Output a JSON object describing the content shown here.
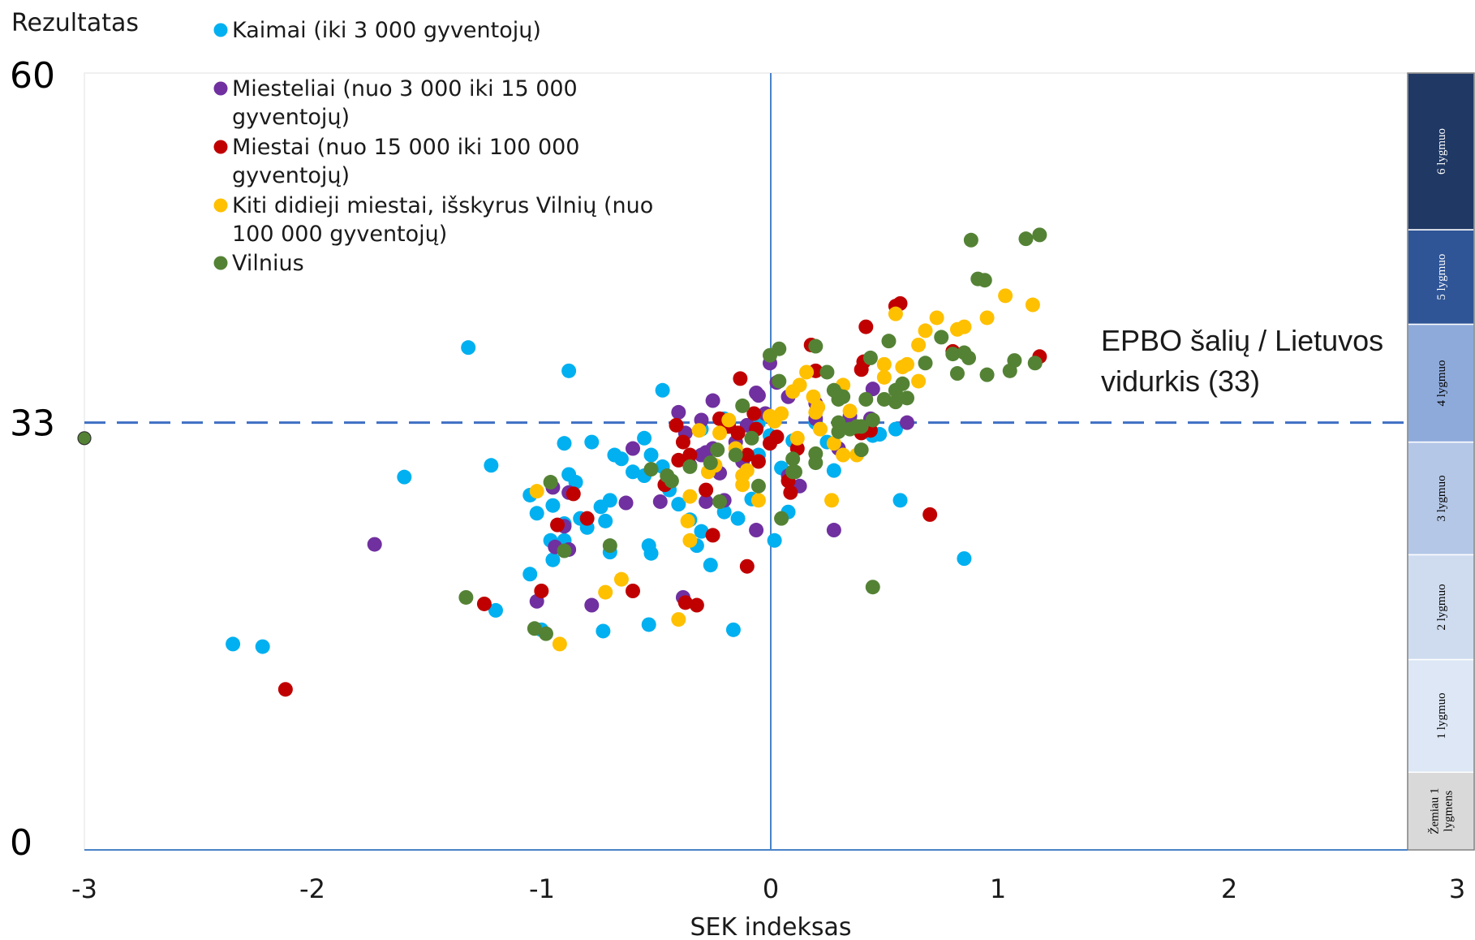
{
  "chart_data": {
    "type": "scatter",
    "ylabel": "Rezultatas",
    "xlabel": "SEK indeksas",
    "xlim": [
      -3,
      3
    ],
    "ylim": [
      0,
      60
    ],
    "xticks": [
      "-3",
      "-2",
      "-1",
      "0",
      "1",
      "2",
      "3"
    ],
    "yticks": [
      "0",
      "33",
      "60"
    ],
    "grid": false,
    "legend_position": "top-left",
    "reference_line": {
      "y": 33,
      "label_lines": [
        "EPBO šalių / Lietuvos",
        "vidurkis (33)"
      ]
    },
    "levels": [
      {
        "label": "Žemiau 1 lygmens",
        "lines": [
          "Žemiau 1",
          "lygmens"
        ],
        "y_from": 0,
        "y_to": 6,
        "color": "#d9d9d9",
        "text_color": "#000000"
      },
      {
        "label": "1 lygmuo",
        "lines": [
          "1 lygmuo"
        ],
        "y_from": 6,
        "y_to": 14.7,
        "color": "#dde7f5",
        "text_color": "#000000"
      },
      {
        "label": "2 lygmuo",
        "lines": [
          "2 lygmuo"
        ],
        "y_from": 14.7,
        "y_to": 22.8,
        "color": "#cfdcf0",
        "text_color": "#000000"
      },
      {
        "label": "3 lygmuo",
        "lines": [
          "3 lygmuo"
        ],
        "y_from": 22.8,
        "y_to": 31.5,
        "color": "#b4c7e7",
        "text_color": "#000000"
      },
      {
        "label": "4 lygmuo",
        "lines": [
          "4 lygmuo"
        ],
        "y_from": 31.5,
        "y_to": 40.6,
        "color": "#8eaadb",
        "text_color": "#000000"
      },
      {
        "label": "5 lygmuo",
        "lines": [
          "5 lygmuo"
        ],
        "y_from": 40.6,
        "y_to": 47.9,
        "color": "#2f5597",
        "text_color": "#ffffff"
      },
      {
        "label": "6 lygmuo",
        "lines": [
          "6 lygmuo"
        ],
        "y_from": 47.9,
        "y_to": 60,
        "color": "#1f3864",
        "text_color": "#ffffff"
      }
    ],
    "series": [
      {
        "name": "Kaimai (iki 3 000 gyventojų)",
        "legend_lines": [
          "Kaimai (iki 3 000 gyventojų)"
        ],
        "color": "#00b0f0",
        "points": [
          [
            -1.32,
            38.8
          ],
          [
            -0.88,
            37.0
          ],
          [
            -0.47,
            35.5
          ],
          [
            -1.6,
            28.8
          ],
          [
            -1.22,
            29.7
          ],
          [
            -0.9,
            31.4
          ],
          [
            -0.78,
            31.5
          ],
          [
            -0.68,
            30.5
          ],
          [
            -0.65,
            30.2
          ],
          [
            -0.85,
            28.4
          ],
          [
            -0.88,
            29.0
          ],
          [
            -1.05,
            27.4
          ],
          [
            -1.02,
            26.0
          ],
          [
            -0.95,
            26.6
          ],
          [
            -0.9,
            25.2
          ],
          [
            -0.96,
            23.9
          ],
          [
            -0.83,
            25.6
          ],
          [
            -0.8,
            24.9
          ],
          [
            -0.72,
            25.4
          ],
          [
            -0.7,
            27.0
          ],
          [
            -0.74,
            26.5
          ],
          [
            -0.6,
            29.2
          ],
          [
            -0.55,
            28.9
          ],
          [
            -0.47,
            29.6
          ],
          [
            -0.55,
            31.8
          ],
          [
            -0.52,
            30.5
          ],
          [
            -0.44,
            27.8
          ],
          [
            -0.4,
            26.7
          ],
          [
            -0.35,
            25.5
          ],
          [
            -0.3,
            24.6
          ],
          [
            -0.2,
            26.1
          ],
          [
            -0.08,
            27.1
          ],
          [
            -0.14,
            25.6
          ],
          [
            0.02,
            23.9
          ],
          [
            0.08,
            26.1
          ],
          [
            0.05,
            29.5
          ],
          [
            -0.05,
            30.5
          ],
          [
            0.1,
            31.6
          ],
          [
            0.25,
            31.5
          ],
          [
            0.28,
            29.3
          ],
          [
            0.45,
            32.0
          ],
          [
            0.55,
            32.5
          ],
          [
            0.48,
            32.1
          ],
          [
            -0.26,
            22.0
          ],
          [
            -1.05,
            21.3
          ],
          [
            -0.95,
            22.4
          ],
          [
            -0.9,
            23.9
          ],
          [
            -0.7,
            23.0
          ],
          [
            -0.53,
            23.5
          ],
          [
            -0.52,
            22.9
          ],
          [
            -0.32,
            23.5
          ],
          [
            -1.0,
            17.0
          ],
          [
            -0.73,
            16.9
          ],
          [
            -0.53,
            17.4
          ],
          [
            -0.16,
            17.0
          ],
          [
            -1.2,
            18.5
          ],
          [
            -0.2,
            33.3
          ],
          [
            -0.3,
            32.5
          ],
          [
            0.0,
            32.0
          ],
          [
            0.2,
            33.0
          ],
          [
            -2.35,
            15.9
          ],
          [
            -2.22,
            15.7
          ],
          [
            0.85,
            22.5
          ],
          [
            0.57,
            27.0
          ],
          [
            -0.05,
            33.0
          ]
        ]
      },
      {
        "name": "Miesteliai (nuo 3 000 iki 15 000 gyventojų)",
        "legend_lines": [
          "Miesteliai (nuo 3 000 iki 15 000",
          "gyventojų)"
        ],
        "color": "#7030a0",
        "points": [
          [
            -1.73,
            23.6
          ],
          [
            -0.95,
            28.0
          ],
          [
            -0.88,
            27.6
          ],
          [
            -0.9,
            25.0
          ],
          [
            -0.94,
            23.4
          ],
          [
            -0.88,
            23.2
          ],
          [
            -0.6,
            31.0
          ],
          [
            -0.63,
            26.8
          ],
          [
            -0.48,
            26.9
          ],
          [
            -0.4,
            33.8
          ],
          [
            -0.3,
            33.2
          ],
          [
            -0.37,
            32.2
          ],
          [
            -0.28,
            30.7
          ],
          [
            -0.35,
            29.7
          ],
          [
            -0.22,
            29.1
          ],
          [
            -0.2,
            27.0
          ],
          [
            -0.28,
            26.9
          ],
          [
            -0.25,
            31.0
          ],
          [
            -0.12,
            30.0
          ],
          [
            -0.1,
            32.8
          ],
          [
            -0.02,
            33.7
          ],
          [
            -0.05,
            35.1
          ],
          [
            0.03,
            36.1
          ],
          [
            -0.25,
            34.7
          ],
          [
            -0.06,
            35.3
          ],
          [
            0.08,
            35.0
          ],
          [
            0.13,
            28.1
          ],
          [
            0.08,
            28.9
          ],
          [
            0.28,
            24.7
          ],
          [
            -0.06,
            24.7
          ],
          [
            0.2,
            33.3
          ],
          [
            0.35,
            33.5
          ],
          [
            0.44,
            33.3
          ],
          [
            0.6,
            33.0
          ],
          [
            0.45,
            35.6
          ],
          [
            0.0,
            37.6
          ],
          [
            -0.38,
            19.5
          ],
          [
            -0.78,
            18.9
          ],
          [
            -1.02,
            19.2
          ],
          [
            -0.3,
            30.5
          ],
          [
            0.3,
            31.0
          ],
          [
            0.2,
            34.5
          ],
          [
            -0.15,
            31.5
          ]
        ]
      },
      {
        "name": "Miestai (nuo 15 000 iki 100 000 gyventojų)",
        "legend_lines": [
          "Miestai (nuo 15 000 iki 100 000",
          "gyventojų)"
        ],
        "color": "#c00000",
        "points": [
          [
            -2.12,
            12.4
          ],
          [
            -1.25,
            19.0
          ],
          [
            -0.86,
            27.5
          ],
          [
            -0.93,
            25.1
          ],
          [
            -0.8,
            25.6
          ],
          [
            -1.0,
            20.0
          ],
          [
            -0.6,
            20.0
          ],
          [
            -0.46,
            28.2
          ],
          [
            -0.41,
            32.8
          ],
          [
            -0.4,
            30.1
          ],
          [
            -0.35,
            30.5
          ],
          [
            -0.28,
            27.8
          ],
          [
            -0.22,
            33.3
          ],
          [
            -0.18,
            32.7
          ],
          [
            -0.14,
            32.2
          ],
          [
            -0.07,
            33.7
          ],
          [
            -0.13,
            36.4
          ],
          [
            -0.06,
            32.5
          ],
          [
            -0.1,
            30.5
          ],
          [
            0.0,
            31.4
          ],
          [
            0.03,
            31.9
          ],
          [
            -0.05,
            30.0
          ],
          [
            0.08,
            28.5
          ],
          [
            0.09,
            27.6
          ],
          [
            0.18,
            39.0
          ],
          [
            0.2,
            37.0
          ],
          [
            0.4,
            37.1
          ],
          [
            0.41,
            37.7
          ],
          [
            0.55,
            42.0
          ],
          [
            0.57,
            42.2
          ],
          [
            0.8,
            38.5
          ],
          [
            0.4,
            32.2
          ],
          [
            0.44,
            32.4
          ],
          [
            0.12,
            31.0
          ],
          [
            0.7,
            25.9
          ],
          [
            1.18,
            38.1
          ],
          [
            -0.32,
            18.9
          ],
          [
            -0.37,
            19.1
          ],
          [
            -0.25,
            24.3
          ],
          [
            -0.1,
            21.9
          ],
          [
            0.42,
            40.4
          ],
          [
            -0.38,
            31.5
          ]
        ]
      },
      {
        "name": "Kiti didieji miestai, išskyrus Vilnių (nuo 100 000 gyventojų)",
        "legend_lines": [
          "Kiti didieji miestai, išskyrus Vilnių (nuo",
          "100 000 gyventojų)"
        ],
        "color": "#ffc000",
        "points": [
          [
            -1.02,
            27.7
          ],
          [
            -0.92,
            15.9
          ],
          [
            -0.72,
            19.9
          ],
          [
            -0.65,
            20.9
          ],
          [
            -0.4,
            17.8
          ],
          [
            -0.35,
            23.9
          ],
          [
            -0.35,
            27.3
          ],
          [
            -0.36,
            25.4
          ],
          [
            -0.31,
            32.4
          ],
          [
            -0.27,
            29.2
          ],
          [
            -0.24,
            29.7
          ],
          [
            -0.22,
            32.2
          ],
          [
            -0.18,
            33.2
          ],
          [
            -0.12,
            28.9
          ],
          [
            -0.1,
            29.3
          ],
          [
            -0.12,
            28.2
          ],
          [
            -0.05,
            27.0
          ],
          [
            0.0,
            33.5
          ],
          [
            0.02,
            33.1
          ],
          [
            0.05,
            33.7
          ],
          [
            0.1,
            35.4
          ],
          [
            0.13,
            35.9
          ],
          [
            0.16,
            36.9
          ],
          [
            0.19,
            35.0
          ],
          [
            0.2,
            33.8
          ],
          [
            0.21,
            34.2
          ],
          [
            0.22,
            32.5
          ],
          [
            0.28,
            31.4
          ],
          [
            0.32,
            30.5
          ],
          [
            0.35,
            33.9
          ],
          [
            0.38,
            30.5
          ],
          [
            0.5,
            36.5
          ],
          [
            0.5,
            37.5
          ],
          [
            0.58,
            37.3
          ],
          [
            0.6,
            37.5
          ],
          [
            0.65,
            36.2
          ],
          [
            0.65,
            39.0
          ],
          [
            0.68,
            40.1
          ],
          [
            0.73,
            41.1
          ],
          [
            0.82,
            40.2
          ],
          [
            0.85,
            40.4
          ],
          [
            0.95,
            41.1
          ],
          [
            1.03,
            42.8
          ],
          [
            1.15,
            42.1
          ],
          [
            0.55,
            41.4
          ],
          [
            0.32,
            35.9
          ],
          [
            0.27,
            27.0
          ],
          [
            0.12,
            31.8
          ],
          [
            -0.15,
            31.0
          ]
        ]
      },
      {
        "name": "Vilnius",
        "legend_lines": [
          "Vilnius"
        ],
        "color": "#548235",
        "points": [
          [
            -3.0,
            31.8
          ],
          [
            -1.33,
            19.5
          ],
          [
            -1.03,
            17.1
          ],
          [
            -0.96,
            28.4
          ],
          [
            -0.9,
            23.1
          ],
          [
            -0.7,
            23.5
          ],
          [
            -0.43,
            28.5
          ],
          [
            -0.45,
            28.9
          ],
          [
            -0.35,
            29.6
          ],
          [
            -0.26,
            29.9
          ],
          [
            -0.23,
            30.9
          ],
          [
            -0.15,
            30.5
          ],
          [
            -0.12,
            34.3
          ],
          [
            -0.08,
            31.8
          ],
          [
            0.0,
            38.2
          ],
          [
            0.04,
            38.7
          ],
          [
            0.04,
            36.2
          ],
          [
            0.1,
            30.2
          ],
          [
            0.1,
            29.2
          ],
          [
            0.11,
            29.2
          ],
          [
            0.2,
            38.9
          ],
          [
            0.25,
            36.9
          ],
          [
            0.28,
            35.5
          ],
          [
            0.3,
            34.8
          ],
          [
            0.32,
            35.0
          ],
          [
            0.3,
            35.1
          ],
          [
            0.3,
            33.0
          ],
          [
            0.3,
            32.3
          ],
          [
            0.35,
            32.5
          ],
          [
            0.4,
            32.7
          ],
          [
            0.42,
            34.8
          ],
          [
            0.44,
            38.0
          ],
          [
            0.45,
            33.2
          ],
          [
            0.5,
            34.8
          ],
          [
            0.55,
            34.6
          ],
          [
            0.55,
            35.5
          ],
          [
            0.58,
            36.0
          ],
          [
            0.6,
            34.9
          ],
          [
            0.68,
            37.6
          ],
          [
            0.75,
            39.6
          ],
          [
            0.82,
            36.8
          ],
          [
            0.8,
            38.3
          ],
          [
            0.85,
            38.4
          ],
          [
            0.87,
            38.0
          ],
          [
            0.88,
            47.1
          ],
          [
            0.91,
            44.1
          ],
          [
            0.94,
            44.0
          ],
          [
            0.95,
            36.7
          ],
          [
            1.05,
            37.0
          ],
          [
            1.07,
            37.8
          ],
          [
            1.12,
            47.2
          ],
          [
            1.16,
            37.6
          ],
          [
            1.18,
            47.5
          ],
          [
            0.52,
            39.3
          ],
          [
            0.45,
            20.3
          ],
          [
            0.05,
            25.6
          ],
          [
            -0.05,
            28.1
          ],
          [
            0.2,
            30.6
          ],
          [
            0.2,
            29.9
          ],
          [
            0.38,
            32.7
          ],
          [
            0.4,
            30.9
          ],
          [
            -0.98,
            16.7
          ],
          [
            -0.22,
            26.9
          ],
          [
            -0.52,
            29.4
          ]
        ]
      }
    ]
  }
}
